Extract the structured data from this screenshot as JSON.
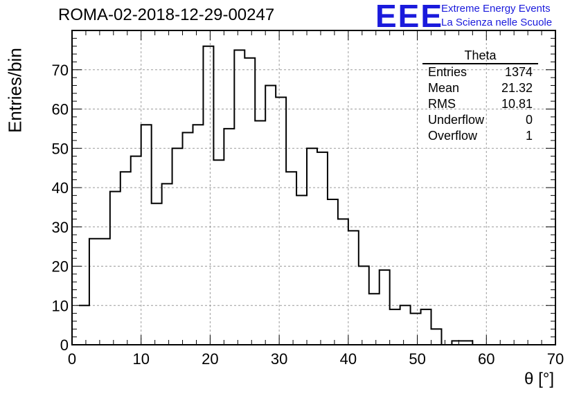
{
  "title": "ROMA-02-2018-12-29-00247",
  "logo": {
    "mark": "EEE",
    "line1": "Extreme Energy Events",
    "line2": "La Scienza nelle Scuole",
    "color": "#1a1adc"
  },
  "stats": {
    "name": "Theta",
    "rows": [
      {
        "label": "Entries",
        "value": "1374"
      },
      {
        "label": "Mean",
        "value": "21.32"
      },
      {
        "label": "RMS",
        "value": "10.81"
      },
      {
        "label": "Underflow",
        "value": "0"
      },
      {
        "label": "Overflow",
        "value": "1"
      }
    ]
  },
  "chart_data": {
    "type": "histogram",
    "title": "ROMA-02-2018-12-29-00247",
    "xlabel": "θ [°]",
    "ylabel": "Entries/bin",
    "xlim": [
      0,
      70
    ],
    "ylim": [
      0,
      80
    ],
    "xticks": [
      0,
      10,
      20,
      30,
      40,
      50,
      60,
      70
    ],
    "yticks": [
      0,
      10,
      20,
      30,
      40,
      50,
      60,
      70
    ],
    "grid": true,
    "bin_width": 1.5,
    "bin_start": 1.0,
    "values": [
      10,
      27,
      27,
      39,
      44,
      48,
      56,
      36,
      41,
      50,
      54,
      56,
      76,
      47,
      55,
      75,
      73,
      57,
      66,
      63,
      44,
      38,
      50,
      49,
      37,
      32,
      29,
      20,
      13,
      19,
      9,
      10,
      8,
      9,
      4,
      0,
      1,
      1,
      0
    ],
    "line_color": "#000000"
  }
}
